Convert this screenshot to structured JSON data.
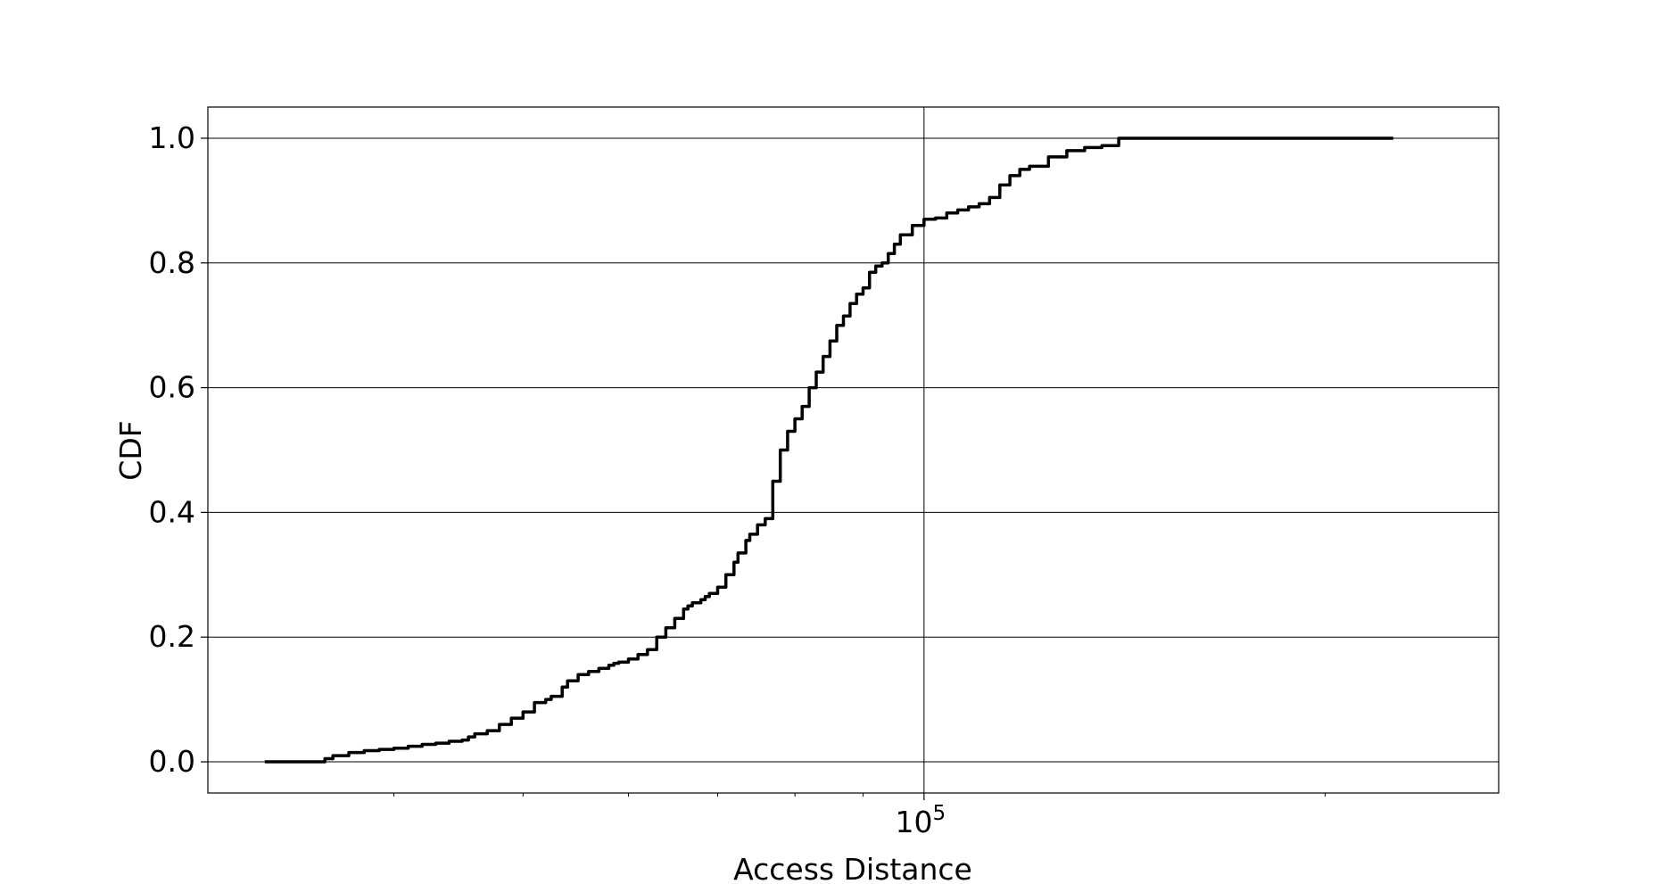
{
  "chart_data": {
    "type": "line",
    "title": "",
    "xlabel": "Access Distance",
    "ylabel": "CDF",
    "x_scale": "log",
    "xlim": [
      29000,
      270000
    ],
    "ylim": [
      -0.05,
      1.05
    ],
    "x_major_ticks": [
      {
        "value": 100000,
        "label_base": "10",
        "label_exp": "5"
      }
    ],
    "x_minor_ticks": [
      40000,
      50000,
      60000,
      70000,
      80000,
      90000,
      200000
    ],
    "y_ticks": [
      0.0,
      0.2,
      0.4,
      0.6,
      0.8,
      1.0
    ],
    "y_tick_labels": [
      "0.0",
      "0.2",
      "0.4",
      "0.6",
      "0.8",
      "1.0"
    ],
    "grid": true,
    "line_color": "#000000",
    "series": [
      {
        "x": [
          32000,
          35000,
          35500,
          36000,
          37000,
          38000,
          39000,
          40000,
          41000,
          42000,
          43000,
          44000,
          45000,
          45500,
          46000,
          47000,
          48000,
          49000,
          50000,
          51000,
          52000,
          52500,
          53500,
          54000,
          55000,
          56000,
          57000,
          58000,
          58500,
          59000,
          60000,
          61000,
          62000,
          63000,
          64000,
          65000,
          66000,
          66500,
          67000,
          68000,
          68500,
          69000,
          70000,
          71000,
          72000,
          72500,
          73500,
          74000,
          75000,
          76000,
          77000,
          78000,
          79000,
          80000,
          81000,
          82000,
          83000,
          84000,
          85000,
          86000,
          87000,
          88000,
          89000,
          90000,
          91000,
          92000,
          93000,
          94000,
          95000,
          96000,
          98000,
          100000,
          102000,
          104000,
          106000,
          108000,
          110000,
          112000,
          114000,
          116000,
          118000,
          120000,
          124000,
          128000,
          132000,
          136000,
          140000,
          140010,
          145000,
          150000,
          160000,
          175000,
          190000,
          210000,
          225000
        ],
        "y": [
          0.0,
          0.0,
          0.005,
          0.01,
          0.015,
          0.018,
          0.02,
          0.022,
          0.025,
          0.028,
          0.03,
          0.033,
          0.035,
          0.04,
          0.045,
          0.05,
          0.06,
          0.07,
          0.08,
          0.095,
          0.1,
          0.105,
          0.12,
          0.13,
          0.14,
          0.145,
          0.15,
          0.155,
          0.158,
          0.16,
          0.165,
          0.172,
          0.18,
          0.2,
          0.215,
          0.23,
          0.245,
          0.25,
          0.255,
          0.26,
          0.265,
          0.27,
          0.28,
          0.3,
          0.32,
          0.335,
          0.355,
          0.365,
          0.38,
          0.39,
          0.45,
          0.5,
          0.53,
          0.55,
          0.57,
          0.6,
          0.625,
          0.65,
          0.675,
          0.7,
          0.715,
          0.735,
          0.75,
          0.76,
          0.785,
          0.795,
          0.8,
          0.815,
          0.83,
          0.845,
          0.86,
          0.87,
          0.872,
          0.88,
          0.885,
          0.89,
          0.895,
          0.905,
          0.925,
          0.94,
          0.95,
          0.955,
          0.97,
          0.98,
          0.985,
          0.988,
          0.99,
          1.0,
          1.0,
          1.0,
          1.0,
          1.0,
          1.0,
          1.0,
          1.0
        ]
      }
    ]
  }
}
